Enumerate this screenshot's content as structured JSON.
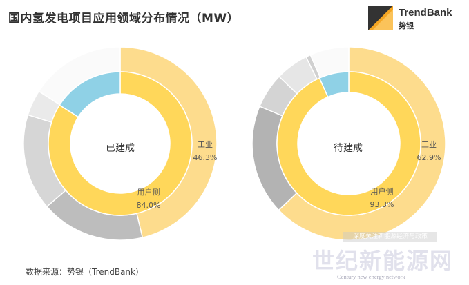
{
  "title": "国内氢发电项目应用领域分布情况（MW）",
  "logo": {
    "name": "TrendBank",
    "sub": "势银"
  },
  "source": "数据来源：势银（TrendBank）",
  "watermark": {
    "cn": "世纪新能源网",
    "en": "Century new energy network",
    "tag": "深度关注新能源经济与政策"
  },
  "colors": {
    "outer_yellow": "#fddc8d",
    "inner_yellow": "#ffd75a",
    "blue": "#8fd1e6",
    "dark_gray": "#b3b3b3",
    "mid_gray": "#cfcfcf",
    "light_gray": "#e8e8e8",
    "white": "#fafafa"
  },
  "chart_data": [
    {
      "type": "pie",
      "center_label": "已建成",
      "outer_ring": [
        {
          "label": "工业",
          "value": 46.3,
          "color": "#fddc8d"
        },
        {
          "value": 17.4,
          "color": "#bdbdbd"
        },
        {
          "value": 16.1,
          "color": "#d6d6d6"
        },
        {
          "value": 4.3,
          "color": "#eaeaea"
        },
        {
          "value": 15.9,
          "color": "#fafafa"
        }
      ],
      "inner_ring": [
        {
          "label": "用户侧",
          "value": 84.0,
          "color": "#ffd75a"
        },
        {
          "value": 16.0,
          "color": "#8fd1e6"
        }
      ]
    },
    {
      "type": "pie",
      "center_label": "待建成",
      "outer_ring": [
        {
          "label": "工业",
          "value": 62.9,
          "color": "#fddc8d"
        },
        {
          "value": 18.4,
          "color": "#b3b3b3"
        },
        {
          "value": 5.9,
          "color": "#d4d4d4"
        },
        {
          "value": 5.5,
          "color": "#e6e6e6"
        },
        {
          "value": 0.8,
          "color": "#d0d0d0"
        },
        {
          "value": 6.5,
          "color": "#fafafa"
        }
      ],
      "inner_ring": [
        {
          "label": "用户侧",
          "value": 93.3,
          "color": "#ffd75a"
        },
        {
          "value": 6.7,
          "color": "#8fd1e6"
        }
      ]
    }
  ]
}
